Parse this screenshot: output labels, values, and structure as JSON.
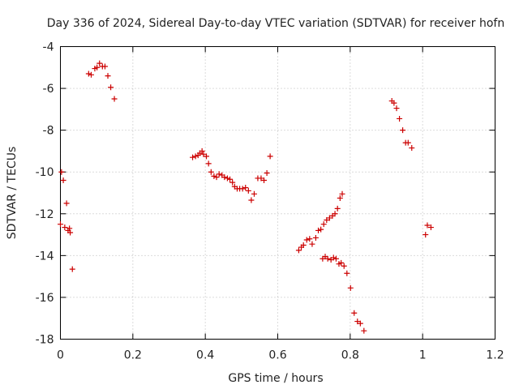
{
  "chart_data": {
    "type": "scatter",
    "title": "Day 336 of 2024, Sidereal Day-to-day VTEC variation (SDTVAR) for receiver hofn",
    "xlabel": "GPS time / hours",
    "ylabel": "SDTVAR / TECUs",
    "xlim": [
      0,
      1.2
    ],
    "ylim": [
      -18,
      -4
    ],
    "xticks": [
      0,
      0.2,
      0.4,
      0.6,
      0.8,
      1,
      1.2
    ],
    "xtick_labels": [
      "0",
      "0.2",
      "0.4",
      "0.6",
      "0.8",
      "1",
      "1.2"
    ],
    "yticks": [
      -18,
      -16,
      -14,
      -12,
      -10,
      -8,
      -6,
      -4
    ],
    "ytick_labels": [
      "-18",
      "-16",
      "-14",
      "-12",
      "-10",
      "-8",
      "-6",
      "-4"
    ],
    "grid": true,
    "marker": "+",
    "color": "#cc0000",
    "series": [
      {
        "name": "SDTVAR",
        "points": [
          [
            0.0,
            -12.5
          ],
          [
            0.003,
            -10.0
          ],
          [
            0.008,
            -10.4
          ],
          [
            0.012,
            -12.65
          ],
          [
            0.017,
            -11.5
          ],
          [
            0.021,
            -12.8
          ],
          [
            0.025,
            -12.7
          ],
          [
            0.027,
            -12.9
          ],
          [
            0.033,
            -14.65
          ],
          [
            0.078,
            -5.3
          ],
          [
            0.085,
            -5.35
          ],
          [
            0.095,
            -5.05
          ],
          [
            0.101,
            -5.0
          ],
          [
            0.108,
            -4.8
          ],
          [
            0.116,
            -4.95
          ],
          [
            0.123,
            -4.95
          ],
          [
            0.131,
            -5.4
          ],
          [
            0.139,
            -5.95
          ],
          [
            0.149,
            -6.5
          ],
          [
            0.365,
            -9.3
          ],
          [
            0.373,
            -9.25
          ],
          [
            0.38,
            -9.2
          ],
          [
            0.385,
            -9.1
          ],
          [
            0.391,
            -9.0
          ],
          [
            0.395,
            -9.15
          ],
          [
            0.403,
            -9.25
          ],
          [
            0.409,
            -9.6
          ],
          [
            0.416,
            -10.0
          ],
          [
            0.424,
            -10.2
          ],
          [
            0.431,
            -10.25
          ],
          [
            0.438,
            -10.1
          ],
          [
            0.446,
            -10.15
          ],
          [
            0.453,
            -10.25
          ],
          [
            0.461,
            -10.3
          ],
          [
            0.468,
            -10.35
          ],
          [
            0.475,
            -10.5
          ],
          [
            0.481,
            -10.7
          ],
          [
            0.488,
            -10.8
          ],
          [
            0.495,
            -10.8
          ],
          [
            0.503,
            -10.8
          ],
          [
            0.511,
            -10.75
          ],
          [
            0.519,
            -10.9
          ],
          [
            0.527,
            -11.35
          ],
          [
            0.535,
            -11.05
          ],
          [
            0.545,
            -10.3
          ],
          [
            0.554,
            -10.3
          ],
          [
            0.562,
            -10.4
          ],
          [
            0.57,
            -10.05
          ],
          [
            0.579,
            -9.25
          ],
          [
            0.658,
            -13.75
          ],
          [
            0.665,
            -13.6
          ],
          [
            0.671,
            -13.5
          ],
          [
            0.68,
            -13.25
          ],
          [
            0.688,
            -13.2
          ],
          [
            0.695,
            -13.45
          ],
          [
            0.705,
            -13.15
          ],
          [
            0.712,
            -12.8
          ],
          [
            0.719,
            -12.75
          ],
          [
            0.727,
            -12.5
          ],
          [
            0.735,
            -12.3
          ],
          [
            0.743,
            -12.2
          ],
          [
            0.751,
            -12.1
          ],
          [
            0.758,
            -12.0
          ],
          [
            0.765,
            -11.75
          ],
          [
            0.772,
            -11.25
          ],
          [
            0.778,
            -11.05
          ],
          [
            0.724,
            -14.15
          ],
          [
            0.731,
            -14.05
          ],
          [
            0.738,
            -14.15
          ],
          [
            0.747,
            -14.2
          ],
          [
            0.754,
            -14.1
          ],
          [
            0.761,
            -14.15
          ],
          [
            0.769,
            -14.4
          ],
          [
            0.775,
            -14.35
          ],
          [
            0.783,
            -14.5
          ],
          [
            0.791,
            -14.85
          ],
          [
            0.801,
            -15.55
          ],
          [
            0.811,
            -16.75
          ],
          [
            0.82,
            -17.15
          ],
          [
            0.828,
            -17.25
          ],
          [
            0.838,
            -17.6
          ],
          [
            0.915,
            -6.6
          ],
          [
            0.921,
            -6.7
          ],
          [
            0.928,
            -6.95
          ],
          [
            0.936,
            -7.45
          ],
          [
            0.945,
            -8.0
          ],
          [
            0.953,
            -8.6
          ],
          [
            0.96,
            -8.6
          ],
          [
            0.97,
            -8.85
          ],
          [
            1.008,
            -13.0
          ],
          [
            1.013,
            -12.55
          ],
          [
            1.023,
            -12.65
          ]
        ]
      }
    ]
  }
}
